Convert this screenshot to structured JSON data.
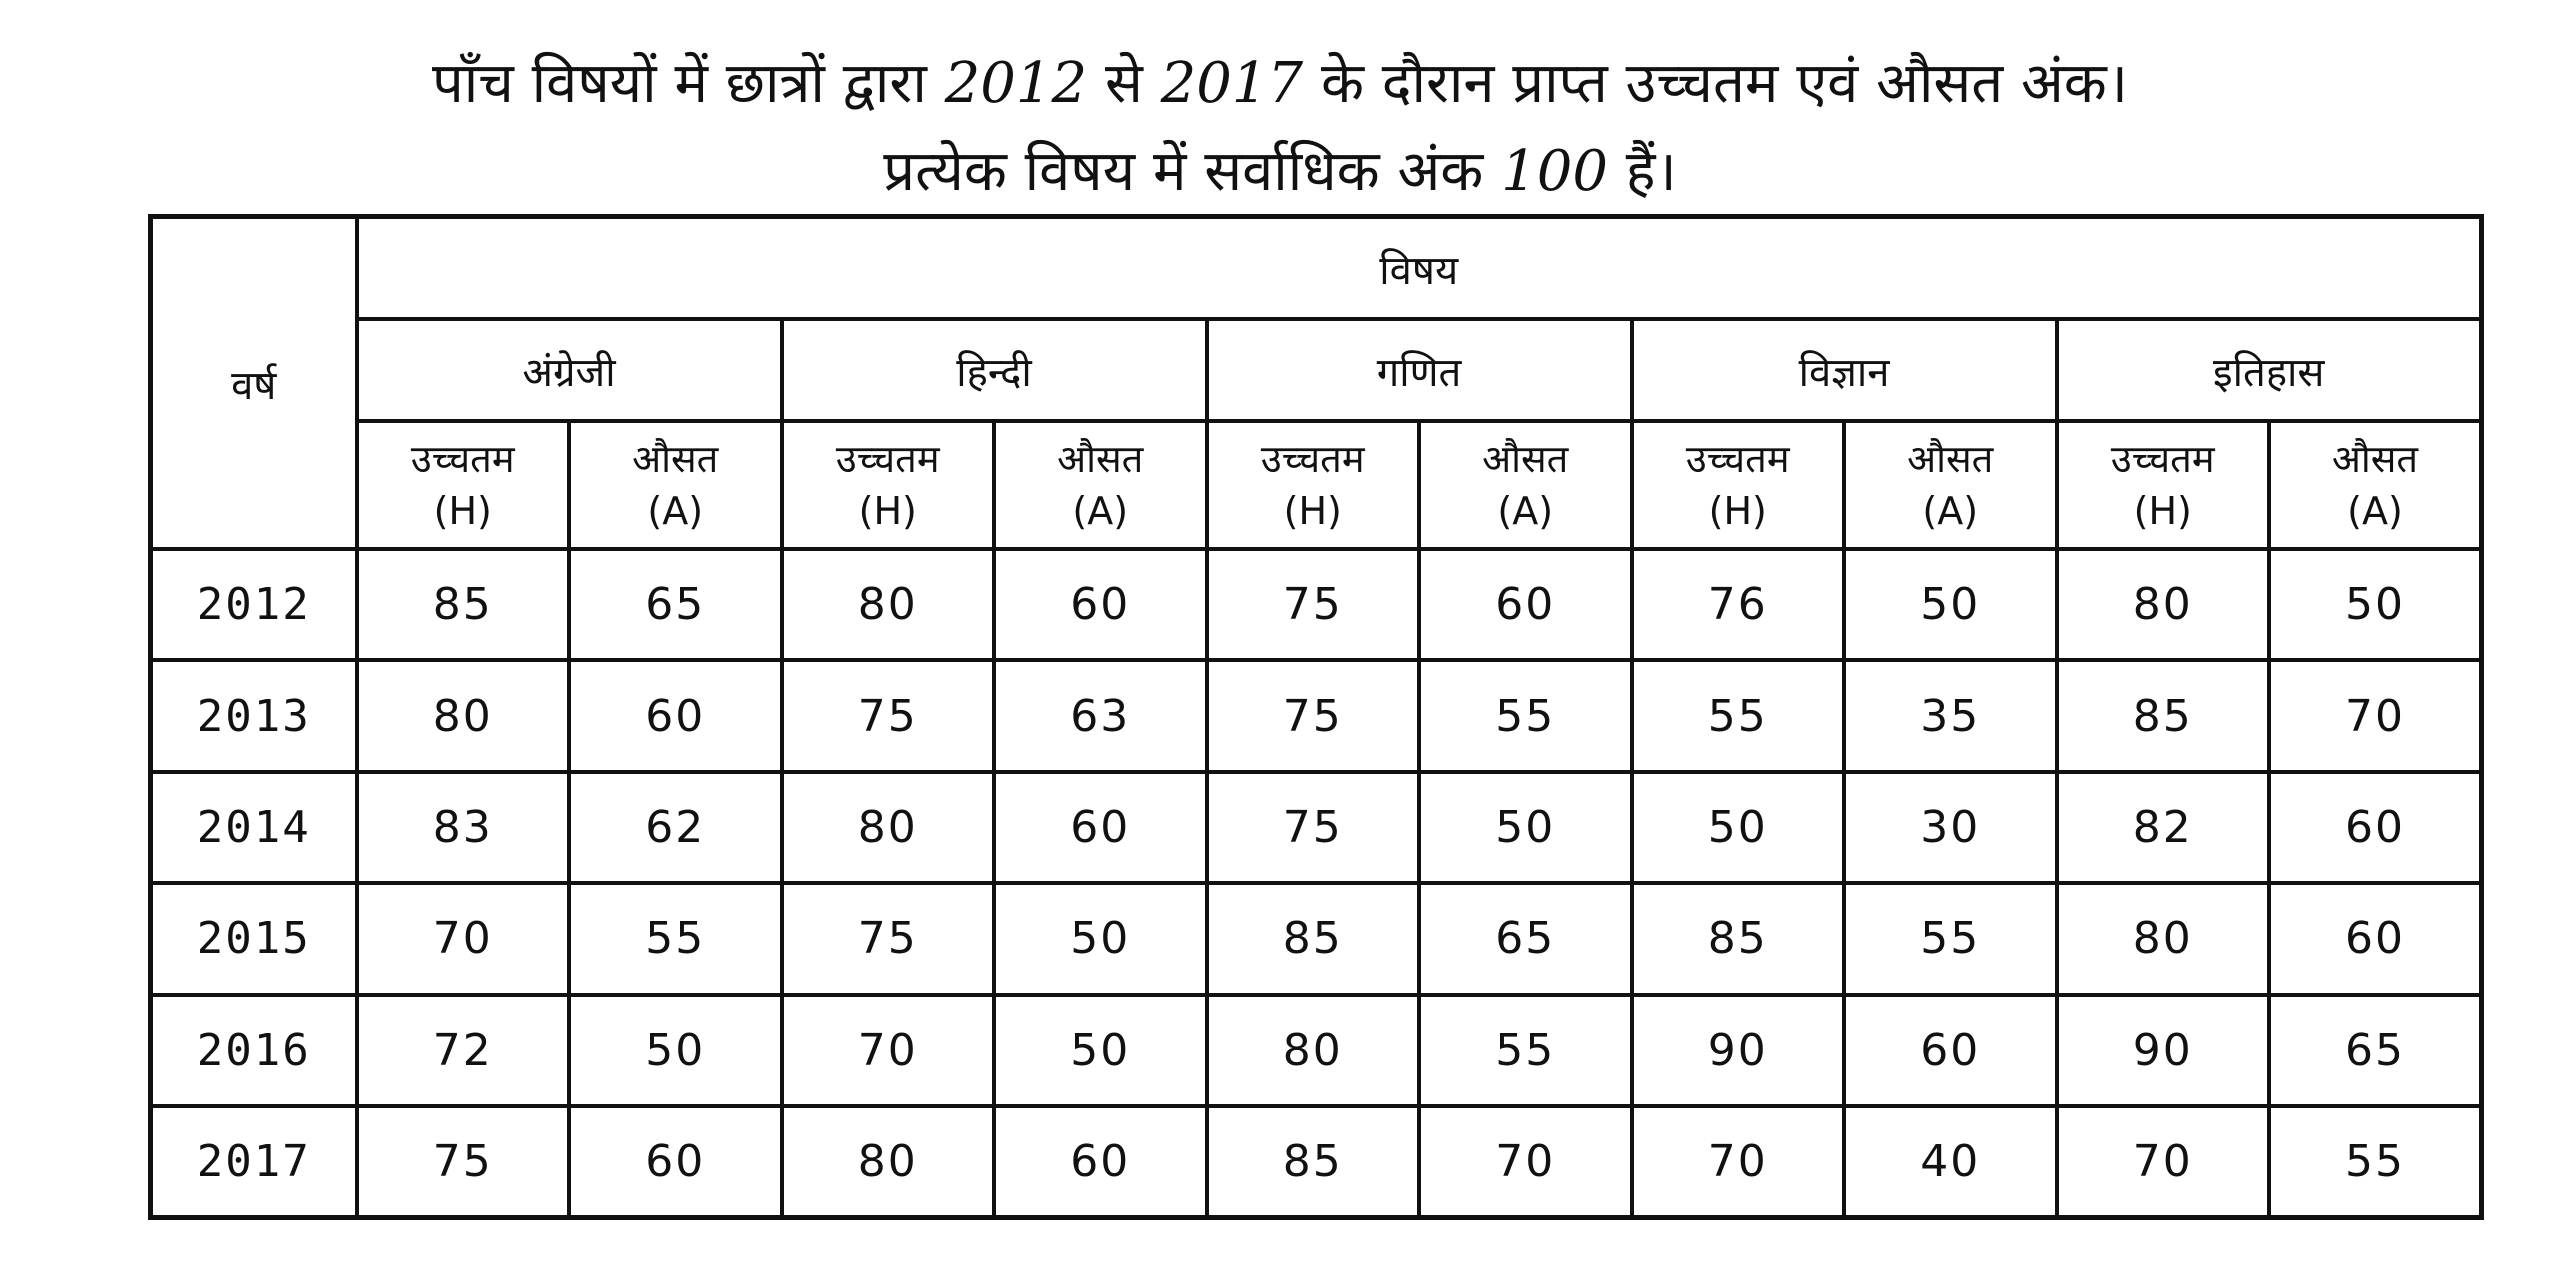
{
  "title": {
    "line1": [
      "पाँच विषयों में छात्रों द्वारा ",
      "2012",
      " से ",
      "2017",
      " के दौरान प्राप्त उच्चतम एवं औसत अंक।"
    ],
    "line2": [
      "प्रत्येक विषय में सर्वाधिक अंक ",
      "100",
      " हैं।"
    ]
  },
  "table": {
    "year_header": "वर्ष",
    "group_header": "विषय",
    "subjects": [
      "अंग्रेजी",
      "हिन्दी",
      "गणित",
      "विज्ञान",
      "इतिहास"
    ],
    "metric_high": [
      "उच्चतम",
      "(H)"
    ],
    "metric_avg": [
      "औसत",
      "(A)"
    ],
    "rows": [
      {
        "year": "2012",
        "values": [
          "85",
          "65",
          "80",
          "60",
          "75",
          "60",
          "76",
          "50",
          "80",
          "50"
        ]
      },
      {
        "year": "2013",
        "values": [
          "80",
          "60",
          "75",
          "63",
          "75",
          "55",
          "55",
          "35",
          "85",
          "70"
        ]
      },
      {
        "year": "2014",
        "values": [
          "83",
          "62",
          "80",
          "60",
          "75",
          "50",
          "50",
          "30",
          "82",
          "60"
        ]
      },
      {
        "year": "2015",
        "values": [
          "70",
          "55",
          "75",
          "50",
          "85",
          "65",
          "85",
          "55",
          "80",
          "60"
        ]
      },
      {
        "year": "2016",
        "values": [
          "72",
          "50",
          "70",
          "50",
          "80",
          "55",
          "90",
          "60",
          "90",
          "65"
        ]
      },
      {
        "year": "2017",
        "values": [
          "75",
          "60",
          "80",
          "60",
          "85",
          "70",
          "70",
          "40",
          "70",
          "55"
        ]
      }
    ]
  }
}
